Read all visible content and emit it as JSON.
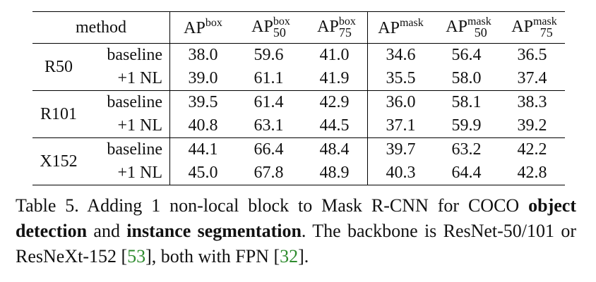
{
  "table": {
    "method_header": "method",
    "headers": [
      {
        "base": "AP",
        "sup": "box"
      },
      {
        "base": "AP",
        "sup": "box",
        "sub": "50"
      },
      {
        "base": "AP",
        "sup": "box",
        "sub": "75"
      },
      {
        "base": "AP",
        "sup": "mask"
      },
      {
        "base": "AP",
        "sup": "mask",
        "sub": "50"
      },
      {
        "base": "AP",
        "sup": "mask",
        "sub": "75"
      }
    ],
    "groups": [
      {
        "name": "R50",
        "rows": [
          {
            "label": "baseline",
            "values": [
              "38.0",
              "59.6",
              "41.0",
              "34.6",
              "56.4",
              "36.5"
            ]
          },
          {
            "label": "+1 NL",
            "bold": true,
            "values": [
              "39.0",
              "61.1",
              "41.9",
              "35.5",
              "58.0",
              "37.4"
            ]
          }
        ]
      },
      {
        "name": "R101",
        "rows": [
          {
            "label": "baseline",
            "values": [
              "39.5",
              "61.4",
              "42.9",
              "36.0",
              "58.1",
              "38.3"
            ]
          },
          {
            "label": "+1 NL",
            "bold": true,
            "values": [
              "40.8",
              "63.1",
              "44.5",
              "37.1",
              "59.9",
              "39.2"
            ]
          }
        ]
      },
      {
        "name": "X152",
        "rows": [
          {
            "label": "baseline",
            "values": [
              "44.1",
              "66.4",
              "48.4",
              "39.7",
              "63.2",
              "42.2"
            ]
          },
          {
            "label": "+1 NL",
            "bold": true,
            "values": [
              "45.0",
              "67.8",
              "48.9",
              "40.3",
              "64.4",
              "42.8"
            ]
          }
        ]
      }
    ]
  },
  "caption": [
    {
      "text": "Table 5. Adding 1 non-local block to Mask R-CNN for COCO "
    },
    {
      "text": "object detection",
      "style": "bold"
    },
    {
      "text": " and "
    },
    {
      "text": "instance segmentation",
      "style": "bold"
    },
    {
      "text": ".  The backbone is ResNet-50/101 or ResNeXt-152 ["
    },
    {
      "text": "53",
      "style": "cite"
    },
    {
      "text": "], both with FPN ["
    },
    {
      "text": "32",
      "style": "cite"
    },
    {
      "text": "]."
    }
  ]
}
